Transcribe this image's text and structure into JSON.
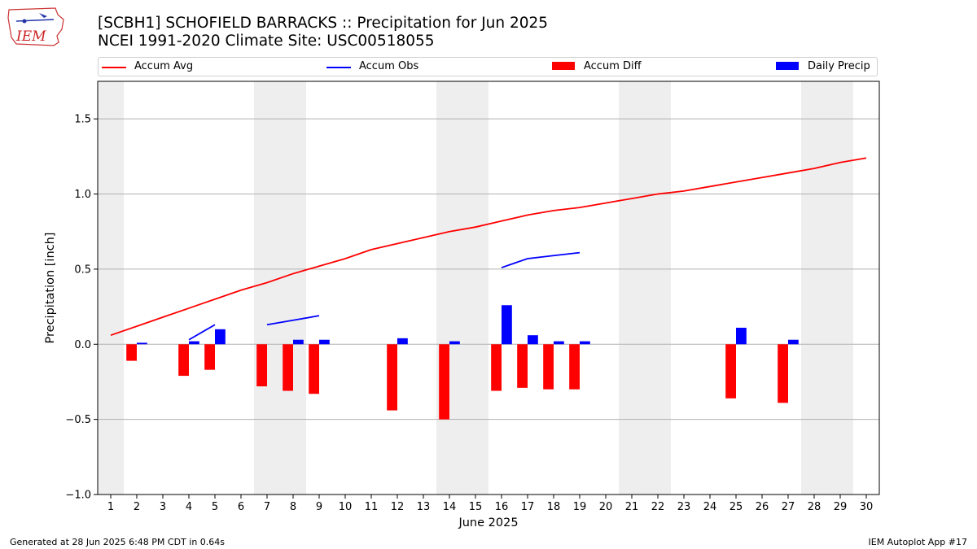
{
  "title_line1": "[SCBH1] SCHOFIELD BARRACKS :: Precipitation for Jun 2025",
  "title_line2": "NCEI 1991-2020 Climate Site: USC00518055",
  "logo_text": "IEM",
  "footer_left": "Generated at 28 Jun 2025 6:48 PM CDT in 0.64s",
  "footer_right": "IEM Autoplot App #17",
  "colors": {
    "accum_avg": "#ff0000",
    "accum_obs": "#0000ff",
    "accum_diff": "#ff0000",
    "daily_precip": "#0000ff",
    "weekend_shade": "#eeeeee",
    "grid": "#b0b0b0"
  },
  "chart_data": {
    "type": "bar",
    "xlabel": "June 2025",
    "ylabel": "Precipitation [inch]",
    "ylim": [
      -1.0,
      1.75
    ],
    "xlim": [
      0.5,
      30.5
    ],
    "yticks": [
      -1.0,
      -0.5,
      0.0,
      0.5,
      1.0,
      1.5
    ],
    "ytick_labels": [
      "−1.0",
      "−0.5",
      "0.0",
      "0.5",
      "1.0",
      "1.5"
    ],
    "days": [
      1,
      2,
      3,
      4,
      5,
      6,
      7,
      8,
      9,
      10,
      11,
      12,
      13,
      14,
      15,
      16,
      17,
      18,
      19,
      20,
      21,
      22,
      23,
      24,
      25,
      26,
      27,
      28,
      29,
      30
    ],
    "weekend_ranges": [
      [
        0.5,
        1.5
      ],
      [
        6.5,
        8.5
      ],
      [
        13.5,
        15.5
      ],
      [
        20.5,
        22.5
      ],
      [
        27.5,
        29.5
      ]
    ],
    "grid": "horizontal",
    "legend_placement": "top",
    "legend": [
      "Accum Avg",
      "Accum Obs",
      "Accum Diff",
      "Daily Precip"
    ],
    "accum_avg": [
      0.06,
      0.12,
      0.18,
      0.24,
      0.3,
      0.36,
      0.41,
      0.47,
      0.52,
      0.57,
      0.63,
      0.67,
      0.71,
      0.75,
      0.78,
      0.82,
      0.86,
      0.89,
      0.91,
      0.94,
      0.97,
      1.0,
      1.02,
      1.05,
      1.08,
      1.11,
      1.14,
      1.17,
      1.21,
      1.24
    ],
    "accum_obs_segments": [
      {
        "x": [
          4,
          5
        ],
        "y": [
          0.03,
          0.13
        ]
      },
      {
        "x": [
          7,
          8,
          9
        ],
        "y": [
          0.13,
          0.16,
          0.19
        ]
      },
      {
        "x": [
          16,
          17,
          18,
          19
        ],
        "y": [
          0.51,
          0.57,
          0.59,
          0.61
        ]
      }
    ],
    "accum_diff": [
      {
        "day": 2,
        "value": -0.11
      },
      {
        "day": 4,
        "value": -0.21
      },
      {
        "day": 5,
        "value": -0.17
      },
      {
        "day": 7,
        "value": -0.28
      },
      {
        "day": 8,
        "value": -0.31
      },
      {
        "day": 9,
        "value": -0.33
      },
      {
        "day": 12,
        "value": -0.44
      },
      {
        "day": 14,
        "value": -0.5
      },
      {
        "day": 16,
        "value": -0.31
      },
      {
        "day": 17,
        "value": -0.29
      },
      {
        "day": 18,
        "value": -0.3
      },
      {
        "day": 19,
        "value": -0.3
      },
      {
        "day": 25,
        "value": -0.36
      },
      {
        "day": 27,
        "value": -0.39
      }
    ],
    "daily_precip": [
      {
        "day": 2,
        "value": 0.01
      },
      {
        "day": 4,
        "value": 0.02
      },
      {
        "day": 5,
        "value": 0.1
      },
      {
        "day": 8,
        "value": 0.03
      },
      {
        "day": 9,
        "value": 0.03
      },
      {
        "day": 12,
        "value": 0.04
      },
      {
        "day": 14,
        "value": 0.02
      },
      {
        "day": 16,
        "value": 0.26
      },
      {
        "day": 17,
        "value": 0.06
      },
      {
        "day": 18,
        "value": 0.02
      },
      {
        "day": 19,
        "value": 0.02
      },
      {
        "day": 25,
        "value": 0.11
      },
      {
        "day": 27,
        "value": 0.03
      }
    ]
  }
}
